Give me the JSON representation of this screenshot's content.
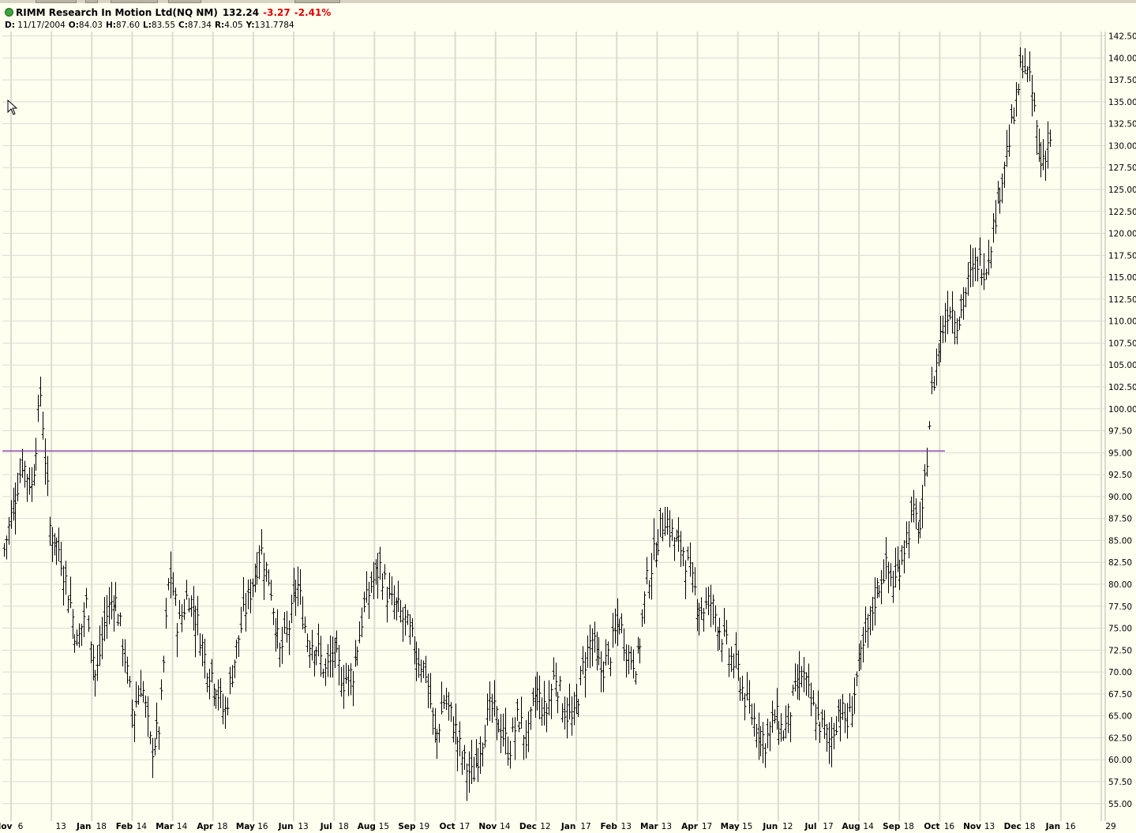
{
  "header": {
    "symbol_label": "RIMM Research In Motion Ltd(NQ NM)",
    "last_price": "132.24",
    "change": "-3.27",
    "change_pct": "-2.41%",
    "ohlc": {
      "date_key": "D:",
      "date": "11/17/2004",
      "open_key": "O:",
      "open": "84.03",
      "high_key": "H:",
      "high": "87.60",
      "low_key": "L:",
      "low": "83.55",
      "close_key": "C:",
      "close": "87.34",
      "range_key": "R:",
      "range": "4.05",
      "y_key": "Y:",
      "y": "131.7784"
    }
  },
  "colors": {
    "background": "#fffff0",
    "grid": "#dedad0",
    "bars": "#000000",
    "reference_line": "#7a2a9e",
    "negative": "#e00000",
    "status_dot": "#3ea23e"
  },
  "chart_data": {
    "type": "ohlc-bar",
    "grid": true,
    "y_axis_position": "right",
    "ylim": [
      53,
      143
    ],
    "y_ticks": [
      "142.50",
      "140.00",
      "137.50",
      "135.00",
      "132.50",
      "130.00",
      "127.50",
      "125.00",
      "122.50",
      "120.00",
      "117.50",
      "115.00",
      "112.50",
      "110.00",
      "107.50",
      "105.00",
      "102.50",
      "100.00",
      "97.50",
      "95.00",
      "92.50",
      "90.00",
      "87.50",
      "85.00",
      "82.50",
      "80.00",
      "77.50",
      "75.00",
      "72.50",
      "70.00",
      "67.50",
      "65.00",
      "62.50",
      "60.00",
      "57.50",
      "55.00"
    ],
    "x_tick_labels": [
      {
        "month": "Nov",
        "day": "6"
      },
      {
        "month": "",
        "day": "13"
      },
      {
        "month": "Jan",
        "day": "18"
      },
      {
        "month": "Feb",
        "day": "14"
      },
      {
        "month": "Mar",
        "day": "14"
      },
      {
        "month": "Apr",
        "day": "18"
      },
      {
        "month": "May",
        "day": "16"
      },
      {
        "month": "Jun",
        "day": "13"
      },
      {
        "month": "Jul",
        "day": "18"
      },
      {
        "month": "Aug",
        "day": "15"
      },
      {
        "month": "Sep",
        "day": "19"
      },
      {
        "month": "Oct",
        "day": "17"
      },
      {
        "month": "Nov",
        "day": "14"
      },
      {
        "month": "Dec",
        "day": "12"
      },
      {
        "month": "Jan",
        "day": "17"
      },
      {
        "month": "Feb",
        "day": "13"
      },
      {
        "month": "Mar",
        "day": "13"
      },
      {
        "month": "Apr",
        "day": "17"
      },
      {
        "month": "May",
        "day": "15"
      },
      {
        "month": "Jun",
        "day": "12"
      },
      {
        "month": "Jul",
        "day": "17"
      },
      {
        "month": "Aug",
        "day": "14"
      },
      {
        "month": "Sep",
        "day": "18"
      },
      {
        "month": "Oct",
        "day": "16"
      },
      {
        "month": "Nov",
        "day": "13"
      },
      {
        "month": "Dec",
        "day": "18"
      },
      {
        "month": "Jan",
        "day": "16"
      },
      {
        "month": "",
        "day": "29"
      }
    ],
    "horizontal_line": {
      "value": 95.2
    },
    "price_path": [
      84,
      89,
      94,
      91,
      102,
      86,
      84,
      79,
      73,
      78,
      69,
      76,
      79,
      73,
      65,
      69,
      61,
      64,
      82,
      75,
      79,
      76,
      71,
      69,
      65,
      71,
      76,
      80,
      84,
      80,
      72,
      75,
      80,
      74,
      73,
      70,
      72,
      69,
      70,
      76,
      80,
      82,
      78,
      77,
      75,
      72,
      70,
      62,
      67,
      64,
      60,
      58,
      62,
      66,
      64,
      61,
      65,
      62,
      68,
      65,
      70,
      66,
      64,
      70,
      74,
      70,
      72,
      76,
      72,
      71,
      80,
      84,
      88,
      85,
      84,
      80,
      77,
      78,
      75,
      72,
      70,
      66,
      64,
      62,
      65,
      63,
      67,
      70,
      66,
      64,
      62,
      66,
      64,
      70,
      74,
      79,
      82,
      80,
      84,
      88,
      86,
      101,
      108,
      112,
      110,
      114,
      117,
      116,
      122,
      128,
      133,
      140,
      136,
      128,
      131
    ]
  }
}
